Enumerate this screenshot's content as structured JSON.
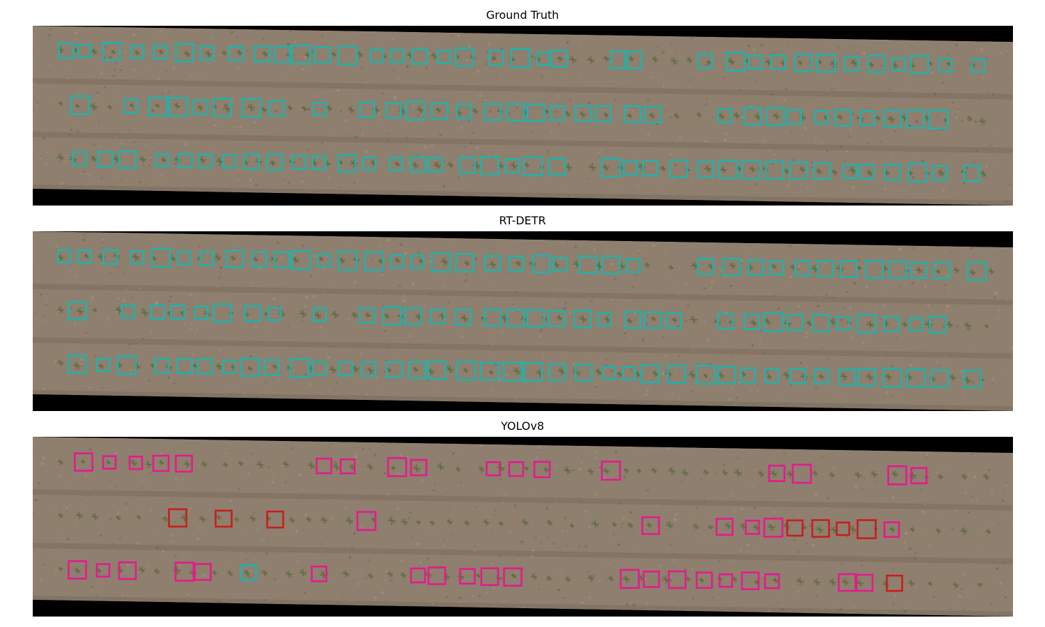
{
  "panels": [
    {
      "id": "ground-truth",
      "title": "Ground Truth",
      "box_colors": {
        "detection": "#20b2aa"
      }
    },
    {
      "id": "rt-detr",
      "title": "RT-DETR",
      "box_colors": {
        "detection": "#20b2aa"
      }
    },
    {
      "id": "yolov8",
      "title": "YOLOv8",
      "box_colors": {
        "detection": "#e6198f",
        "missed": "#c81e1e",
        "correct": "#20b2aa"
      }
    }
  ],
  "colors": {
    "soil": "#8f7f6e",
    "soil_dark": "#6f6153",
    "plant": "#5a6a3a",
    "border": "#000000"
  }
}
